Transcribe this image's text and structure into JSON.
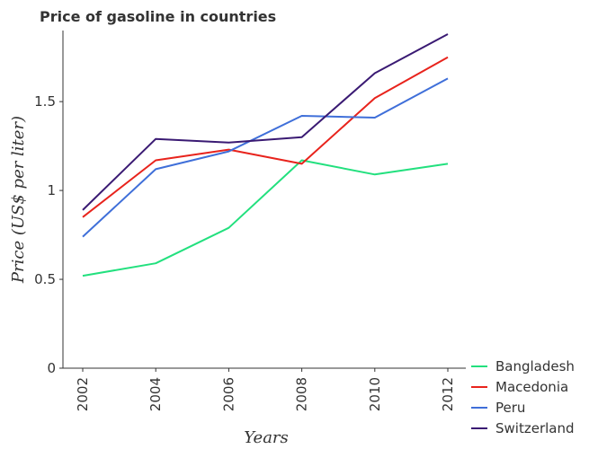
{
  "chart_data": {
    "type": "line",
    "title": "Price of gasoline in countries",
    "xlabel": "Years",
    "ylabel": "Price (US$ per liter)",
    "x": [
      "2002",
      "2004",
      "2006",
      "2008",
      "2010",
      "2012"
    ],
    "ylim": [
      0,
      1.9
    ],
    "yticks": [
      0,
      0.5,
      1,
      1.5
    ],
    "ytick_labels": [
      "0",
      "0.5",
      "1",
      "1.5"
    ],
    "grid": false,
    "legend_position": "bottom-right",
    "series": [
      {
        "name": "Bangladesh",
        "color": "#22e07e",
        "values": [
          0.52,
          0.59,
          0.79,
          1.17,
          1.09,
          1.15
        ]
      },
      {
        "name": "Macedonia",
        "color": "#e8231c",
        "values": [
          0.85,
          1.17,
          1.23,
          1.15,
          1.52,
          1.75
        ]
      },
      {
        "name": "Peru",
        "color": "#3f6fd9",
        "values": [
          0.74,
          1.12,
          1.22,
          1.42,
          1.41,
          1.63
        ]
      },
      {
        "name": "Switzerland",
        "color": "#3a1a73",
        "values": [
          0.89,
          1.29,
          1.27,
          1.3,
          1.66,
          1.88
        ]
      }
    ]
  }
}
